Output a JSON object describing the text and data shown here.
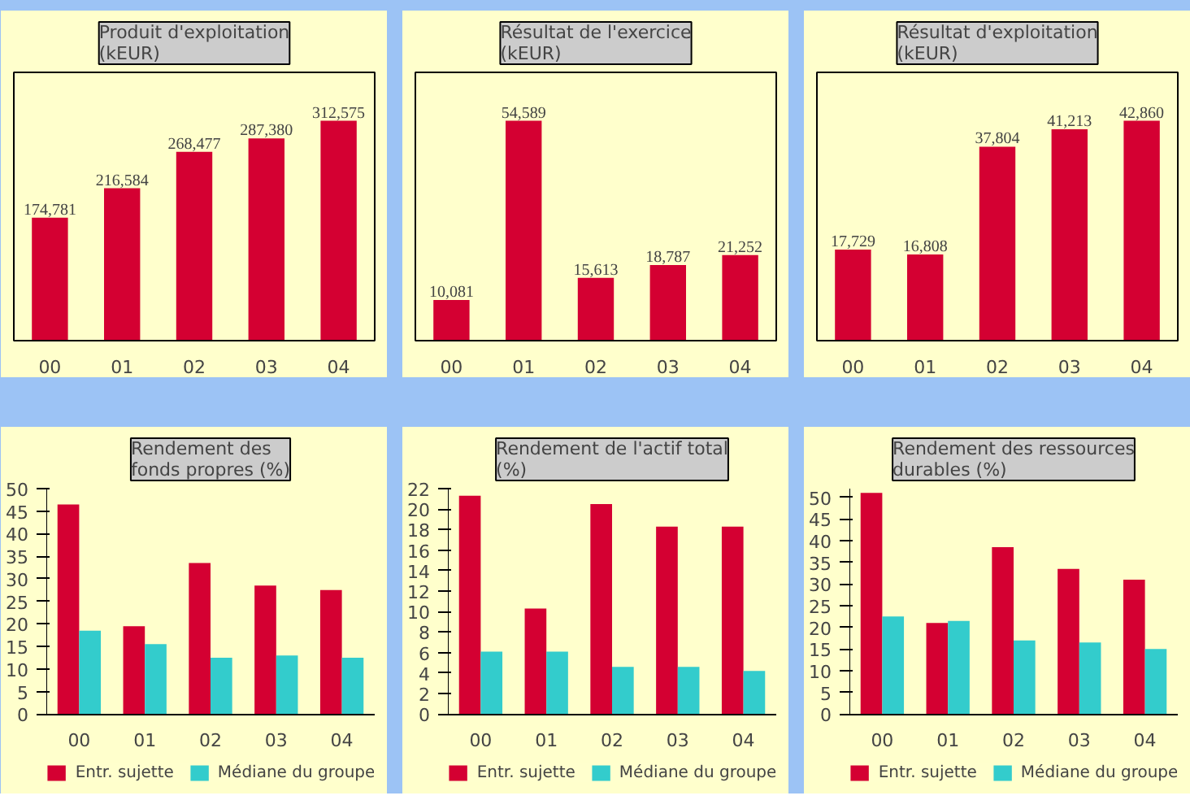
{
  "chart_data": [
    {
      "type": "bar",
      "title": "Produit d'exploitation\n(kEUR)",
      "categories": [
        "00",
        "01",
        "02",
        "03",
        "04"
      ],
      "values": [
        174781,
        216584,
        268477,
        287380,
        312575
      ],
      "color": "#d40032",
      "value_labels": [
        "174,781",
        "216,584",
        "268,477",
        "287,380",
        "312,575"
      ]
    },
    {
      "type": "bar",
      "title": "Résultat de l'exercice\n(kEUR)",
      "categories": [
        "00",
        "01",
        "02",
        "03",
        "04"
      ],
      "values": [
        10081,
        54589,
        15613,
        18787,
        21252
      ],
      "color": "#d40032",
      "value_labels": [
        "10,081",
        "54,589",
        "15,613",
        "18,787",
        "21,252"
      ]
    },
    {
      "type": "bar",
      "title": "Résultat d'exploitation\n(kEUR)",
      "categories": [
        "00",
        "01",
        "02",
        "03",
        "04"
      ],
      "values": [
        17729,
        16808,
        37804,
        41213,
        42860
      ],
      "color": "#d40032",
      "value_labels": [
        "17,729",
        "16,808",
        "37,804",
        "41,213",
        "42,860"
      ]
    },
    {
      "type": "bar",
      "title": "Rendement des\nfonds propres (%)",
      "categories": [
        "00",
        "01",
        "02",
        "03",
        "04"
      ],
      "ylim": [
        0,
        50
      ],
      "yticks": [
        0,
        5,
        10,
        15,
        20,
        25,
        30,
        35,
        40,
        45,
        50
      ],
      "legend": "bottom",
      "series": [
        {
          "name": "Entr. sujette",
          "color": "#d40032",
          "values": [
            46.5,
            19.5,
            33.5,
            28.5,
            27.5
          ]
        },
        {
          "name": "Médiane du groupe",
          "color": "#33cccc",
          "values": [
            18.5,
            15.5,
            12.5,
            13,
            12.5
          ]
        }
      ]
    },
    {
      "type": "bar",
      "title": "Rendement de l'actif total\n(%)",
      "categories": [
        "00",
        "01",
        "02",
        "03",
        "04"
      ],
      "ylim": [
        0,
        22
      ],
      "yticks": [
        0,
        2,
        4,
        6,
        8,
        10,
        12,
        14,
        16,
        18,
        20,
        22
      ],
      "legend": "bottom",
      "series": [
        {
          "name": "Entr. sujette",
          "color": "#d40032",
          "values": [
            21.3,
            10.3,
            20.5,
            18.3,
            18.3
          ]
        },
        {
          "name": "Médiane du groupe",
          "color": "#33cccc",
          "values": [
            6.1,
            6.1,
            4.6,
            4.6,
            4.2
          ]
        }
      ]
    },
    {
      "type": "bar",
      "title": "Rendement des ressources\ndurables (%)",
      "categories": [
        "00",
        "01",
        "02",
        "03",
        "04"
      ],
      "ylim": [
        0,
        52
      ],
      "yticks": [
        0,
        5,
        10,
        15,
        20,
        25,
        30,
        35,
        40,
        45,
        50
      ],
      "legend": "bottom",
      "series": [
        {
          "name": "Entr. sujette",
          "color": "#d40032",
          "values": [
            51,
            21,
            38.5,
            33.5,
            31
          ]
        },
        {
          "name": "Médiane du groupe",
          "color": "#33cccc",
          "values": [
            22.5,
            21.5,
            17,
            16.5,
            15
          ]
        }
      ]
    }
  ]
}
